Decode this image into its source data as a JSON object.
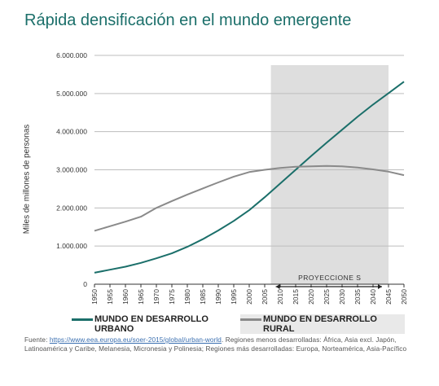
{
  "title": "Rápida densificación en el mundo emergente",
  "source": {
    "prefix": "Fuente: ",
    "link": "https://www.eea.europa.eu/soer-2015/global/urban-world",
    "rest": ". Regiones menos desarrolladas: África, Asia excl. Japón, Latinoamérica y Caribe, Melanesia, Micronesia y Polinesia; Regiones más desarrolladas: Europa, Norteamérica, Asia-Pacífico"
  },
  "colors": {
    "urban": "#1b6f6a",
    "rural": "#8a8a8a",
    "projection": "#dedede",
    "grid": "#bdbdbd"
  },
  "chart_data": {
    "type": "line",
    "title": "Rápida densificación en el mundo emergente",
    "ylabel": "Miles de millones de personas",
    "xlabel": "",
    "ylim": [
      0,
      6000000
    ],
    "yticks": [
      0,
      1000000,
      2000000,
      3000000,
      4000000,
      5000000,
      6000000
    ],
    "ytick_labels": [
      "0",
      "1.000.000",
      "2.000.000",
      "3.000.000",
      "4.000.000",
      "5.000.000",
      "6.000.000"
    ],
    "x": [
      1950,
      1955,
      1960,
      1965,
      1970,
      1975,
      1980,
      1985,
      1990,
      1995,
      2000,
      2005,
      2010,
      2015,
      2020,
      2025,
      2030,
      2035,
      2040,
      2045,
      2050
    ],
    "grid": true,
    "legend_position": "bottom",
    "series": [
      {
        "name": "MUNDO EN DESARROLLO URBANO",
        "key": "urban",
        "values": [
          300000,
          380000,
          460000,
          560000,
          680000,
          810000,
          980000,
          1180000,
          1410000,
          1660000,
          1940000,
          2280000,
          2640000,
          3000000,
          3360000,
          3710000,
          4050000,
          4390000,
          4710000,
          5010000,
          5310000
        ]
      },
      {
        "name": "MUNDO EN DESARROLLO RURAL",
        "key": "rural",
        "values": [
          1400000,
          1520000,
          1640000,
          1770000,
          2000000,
          2180000,
          2350000,
          2510000,
          2670000,
          2820000,
          2940000,
          3000000,
          3050000,
          3080000,
          3090000,
          3100000,
          3090000,
          3060000,
          3010000,
          2950000,
          2860000
        ]
      }
    ],
    "projection": {
      "label": "PROYECCIONE S",
      "from": 2007,
      "to": 2045
    }
  }
}
